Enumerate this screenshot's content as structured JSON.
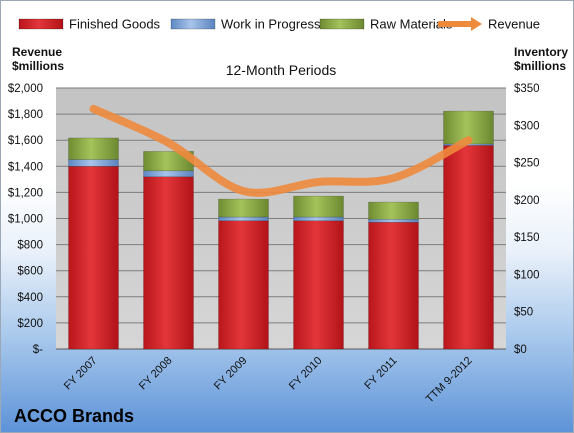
{
  "chart_data": {
    "type": "bar",
    "stacked": true,
    "title": "12-Month Periods",
    "company": "ACCO Brands",
    "categories": [
      "FY 2007",
      "FY 2008",
      "FY 2009",
      "FY 2010",
      "FY 2011",
      "TTM 9-2012"
    ],
    "series": [
      {
        "name": "Finished Goods",
        "axis": "right",
        "color": "#d9262c",
        "values": [
          245,
          231,
          172,
          172,
          170,
          273
        ]
      },
      {
        "name": "Work in Progress",
        "axis": "right",
        "color": "#6f9bd6",
        "values": [
          9,
          8,
          5,
          5,
          4,
          2
        ]
      },
      {
        "name": "Raw Materials",
        "axis": "right",
        "color": "#8cae44",
        "values": [
          29,
          26,
          24,
          28,
          23,
          44
        ]
      }
    ],
    "line_series": {
      "name": "Revenue",
      "axis": "left",
      "color": "#ee8a3c",
      "values": [
        1840,
        1580,
        1210,
        1280,
        1310,
        1600
      ]
    },
    "left_axis": {
      "label_line1": "Revenue",
      "label_line2": "$millions",
      "ylim": [
        0,
        2000
      ],
      "ticks": [
        0,
        200,
        400,
        600,
        800,
        1000,
        1200,
        1400,
        1600,
        1800,
        2000
      ],
      "tick_labels": [
        "$-",
        "$200",
        "$400",
        "$600",
        "$800",
        "$1,000",
        "$1,200",
        "$1,400",
        "$1,600",
        "$1,800",
        "$2,000"
      ]
    },
    "right_axis": {
      "label_line1": "Inventory",
      "label_line2": "$millions",
      "ylim": [
        0,
        350
      ],
      "ticks": [
        0,
        50,
        100,
        150,
        200,
        250,
        300,
        350
      ],
      "tick_labels": [
        "$0",
        "$50",
        "$100",
        "$150",
        "$200",
        "$250",
        "$300",
        "$350"
      ]
    },
    "grid": true,
    "legend_position": "top"
  }
}
